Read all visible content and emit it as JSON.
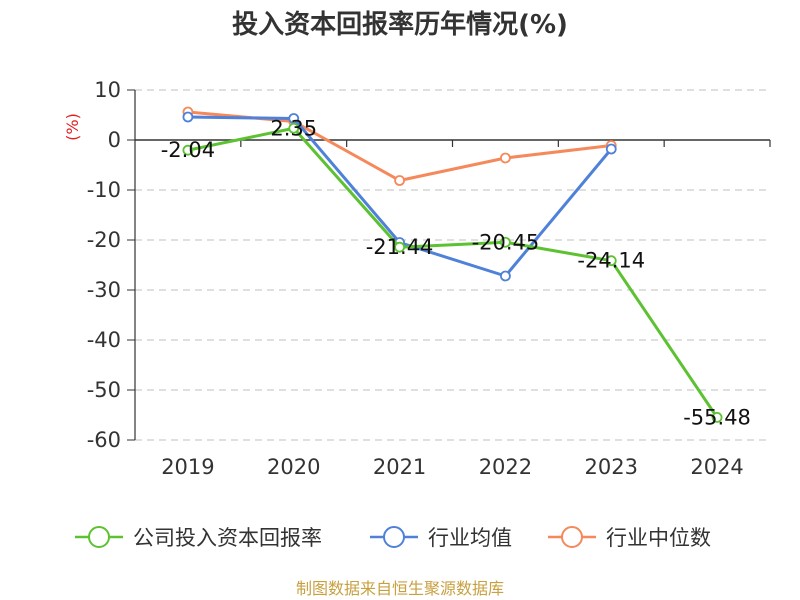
{
  "chart_data": {
    "type": "line",
    "title": "投入资本回报率历年情况(%)",
    "ylabel": "(%)",
    "xlabel": "",
    "ylim": [
      -60,
      10
    ],
    "yticks": [
      10,
      0,
      -10,
      -20,
      -30,
      -40,
      -50,
      -60
    ],
    "categories": [
      "2019",
      "2020",
      "2021",
      "2022",
      "2023",
      "2024"
    ],
    "grid": true,
    "legend": "bottom",
    "series": [
      {
        "name": "公司投入资本回报率",
        "color": "#5dc232",
        "values": [
          -2.04,
          2.35,
          -21.44,
          -20.45,
          -24.14,
          -55.48
        ],
        "labels": [
          "-2.04",
          "2.35",
          "-21.44",
          "-20.45",
          "-24.14",
          "-55.48"
        ]
      },
      {
        "name": "行业均值",
        "color": "#4f81d9",
        "values": [
          4.6,
          4.3,
          -20.5,
          -27.2,
          -1.8,
          null
        ]
      },
      {
        "name": "行业中位数",
        "color": "#f5895c",
        "values": [
          5.6,
          3.7,
          -8.1,
          -3.6,
          -1.1,
          null
        ]
      }
    ]
  },
  "footer": "制图数据来自恒生聚源数据库"
}
